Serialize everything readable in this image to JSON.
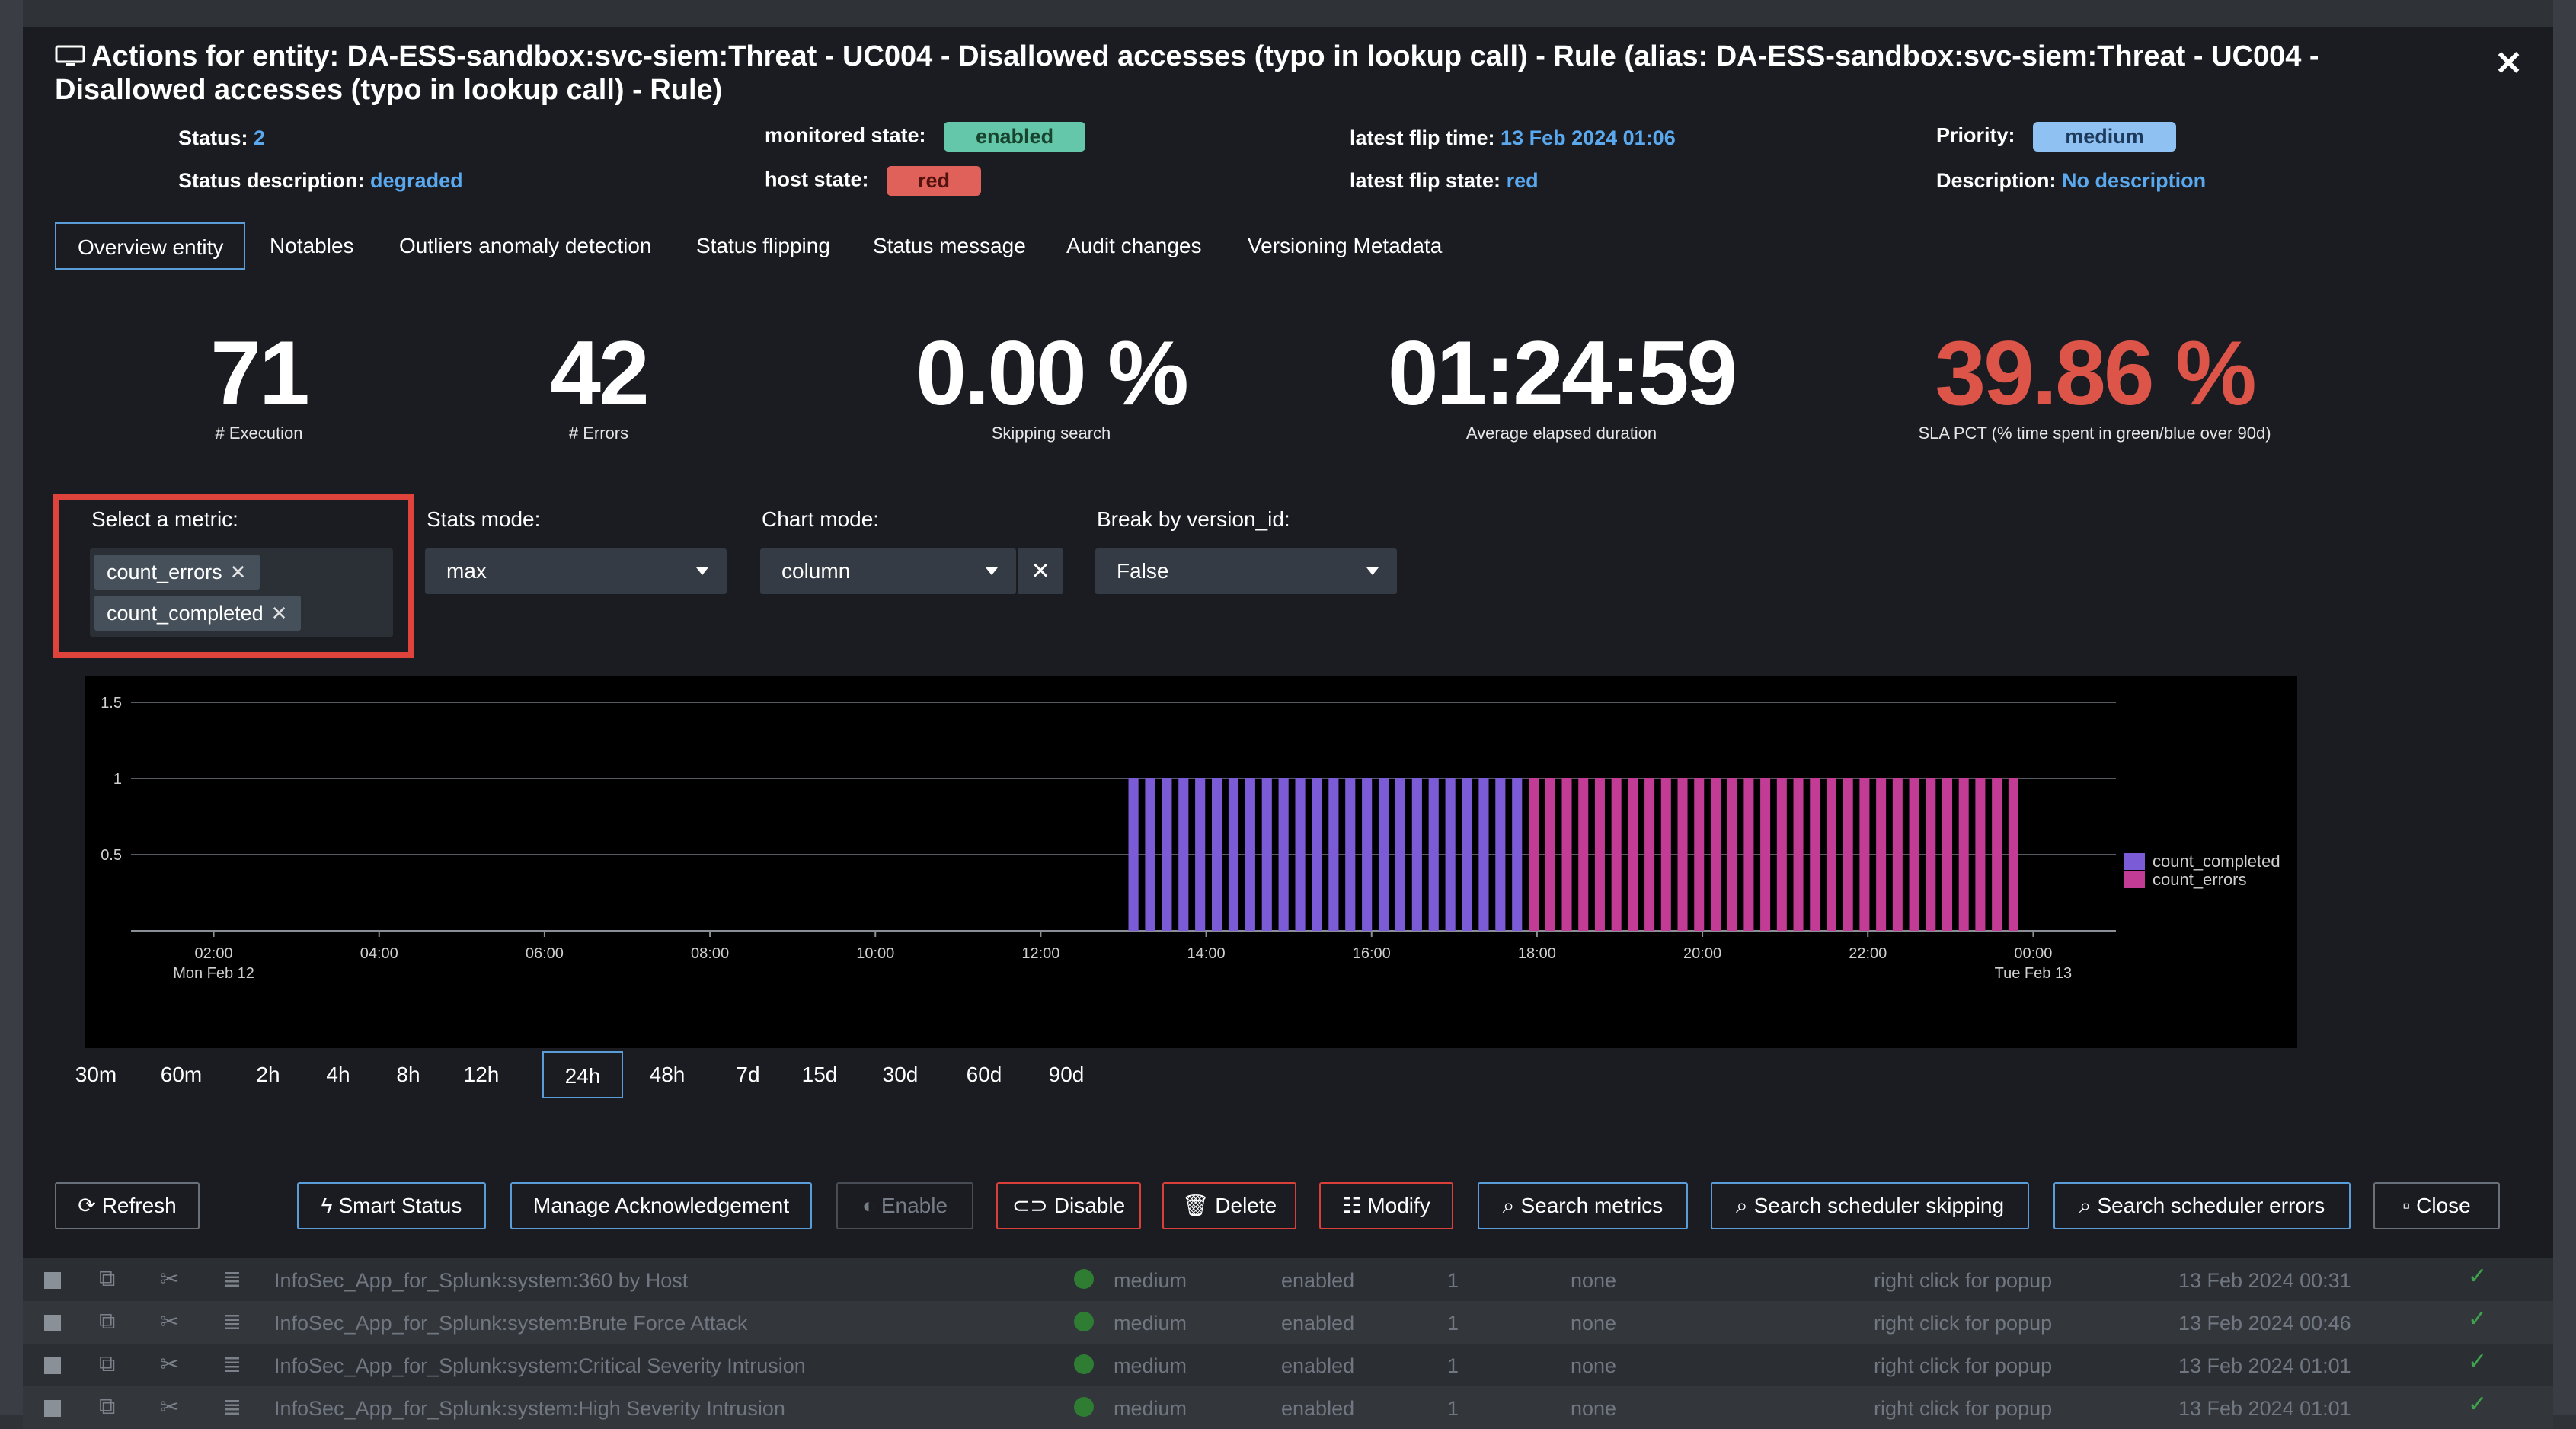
{
  "modal": {
    "title": "Actions for entity: DA-ESS-sandbox:svc-siem:Threat - UC004 - Disallowed accesses (typo in lookup call) - Rule (alias: DA-ESS-sandbox:svc-siem:Threat - UC004 - Disallowed accesses (typo in lookup call) - Rule)",
    "close_glyph": "✕"
  },
  "info": {
    "status_label": "Status:",
    "status_value": "2",
    "status_desc_label": "Status description:",
    "status_desc_value": "degraded",
    "monitored_state_label": "monitored state:",
    "monitored_state_value": "enabled",
    "host_state_label": "host state:",
    "host_state_value": "red",
    "latest_flip_time_label": "latest flip time:",
    "latest_flip_time_value": "13 Feb 2024 01:06",
    "latest_flip_state_label": "latest flip state:",
    "latest_flip_state_value": "red",
    "priority_label": "Priority:",
    "priority_value": "medium",
    "description_label": "Description:",
    "description_value": "No description"
  },
  "tabs": [
    "Overview entity",
    "Notables",
    "Outliers anomaly detection",
    "Status flipping",
    "Status message",
    "Audit changes",
    "Versioning Metadata"
  ],
  "kpis": [
    {
      "value": "71",
      "label": "# Execution"
    },
    {
      "value": "42",
      "label": "# Errors"
    },
    {
      "value": "0.00 %",
      "label": "Skipping search"
    },
    {
      "value": "01:24:59",
      "label": "Average elapsed duration"
    },
    {
      "value": "39.86 %",
      "label": "SLA PCT (% time spent in green/blue over 90d)"
    }
  ],
  "controls": {
    "metric_label": "Select a metric:",
    "metric_chips": [
      "count_errors",
      "count_completed"
    ],
    "stats_mode_label": "Stats mode:",
    "stats_mode_value": "max",
    "chart_mode_label": "Chart mode:",
    "chart_mode_value": "column",
    "break_by_label": "Break by version_id:",
    "break_by_value": "False"
  },
  "colors": {
    "count_completed": "#7b5bd6",
    "count_errors": "#c23b94",
    "sla_red": "#dd5549",
    "link_blue": "#5aa8ee"
  },
  "chart_data": {
    "type": "bar",
    "stacked": true,
    "ylim": [
      0,
      1.5
    ],
    "yticks": [
      "1.5",
      "1",
      "0.5"
    ],
    "xticks": [
      "02:00",
      "04:00",
      "06:00",
      "08:00",
      "10:00",
      "12:00",
      "14:00",
      "16:00",
      "18:00",
      "20:00",
      "22:00",
      "00:00"
    ],
    "xtick_sublabels": {
      "02:00": "Mon Feb 12",
      "00:00": "Tue Feb 13"
    },
    "grid": true,
    "legend_position": "right",
    "series": [
      {
        "name": "count_completed",
        "color": "#7b5bd6",
        "start_hour": 13.06,
        "end_hour": 17.9,
        "bars": 24,
        "value": 1
      },
      {
        "name": "count_errors",
        "color": "#c23b94",
        "start_hour": 17.9,
        "end_hour": 23.9,
        "bars": 30,
        "value": 1
      }
    ]
  },
  "time_ranges": [
    "30m",
    "60m",
    "2h",
    "4h",
    "8h",
    "12h",
    "24h",
    "48h",
    "7d",
    "15d",
    "30d",
    "60d",
    "90d"
  ],
  "time_range_selected": "24h",
  "actions": {
    "refresh": "Refresh",
    "smart_status": "Smart Status",
    "manage_ack": "Manage Acknowledgement",
    "enable": "Enable",
    "disable": "Disable",
    "delete": "Delete",
    "modify": "Modify",
    "search_metrics": "Search metrics",
    "search_sched_skipping": "Search scheduler skipping",
    "search_sched_errors": "Search scheduler errors",
    "close": "Close"
  },
  "background_rows": [
    {
      "name": "InfoSec_App_for_Splunk:system:360 by Host",
      "priority": "medium",
      "state": "enabled",
      "count": "1",
      "ack": "none",
      "action": "right click for popup",
      "time": "13 Feb 2024 00:31"
    },
    {
      "name": "InfoSec_App_for_Splunk:system:Brute Force Attack",
      "priority": "medium",
      "state": "enabled",
      "count": "1",
      "ack": "none",
      "action": "right click for popup",
      "time": "13 Feb 2024 00:46"
    },
    {
      "name": "InfoSec_App_for_Splunk:system:Critical Severity Intrusion",
      "priority": "medium",
      "state": "enabled",
      "count": "1",
      "ack": "none",
      "action": "right click for popup",
      "time": "13 Feb 2024 01:01"
    },
    {
      "name": "InfoSec_App_for_Splunk:system:High Severity Intrusion",
      "priority": "medium",
      "state": "enabled",
      "count": "1",
      "ack": "none",
      "action": "right click for popup",
      "time": "13 Feb 2024 01:01"
    }
  ]
}
